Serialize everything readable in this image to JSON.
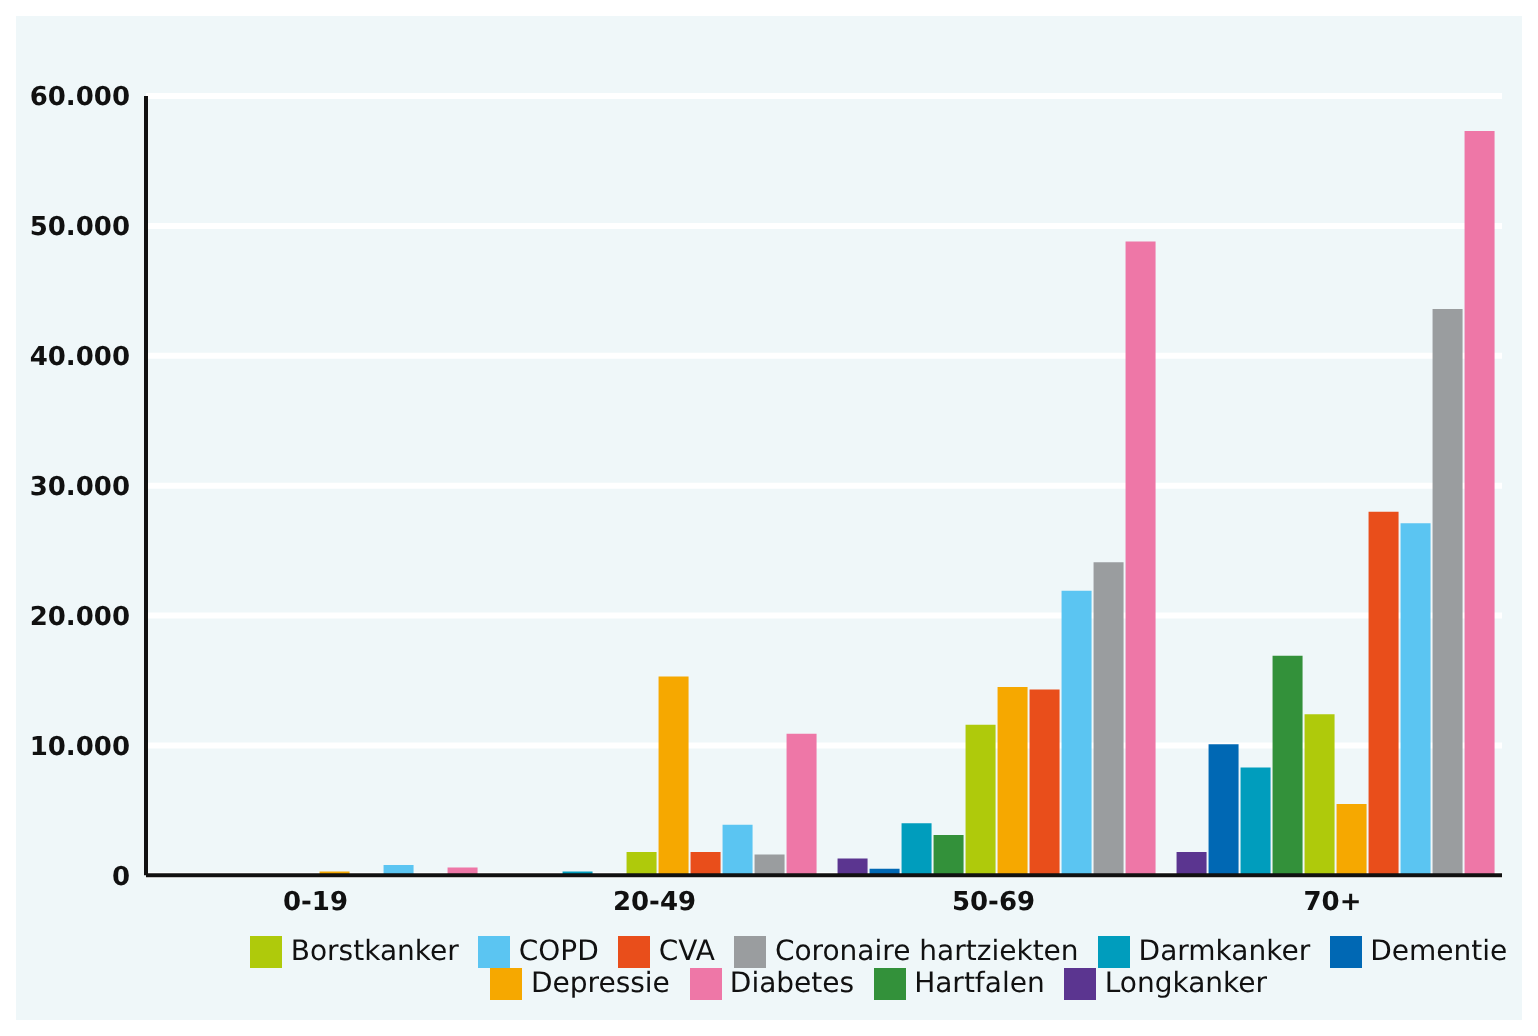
{
  "chart_data": {
    "type": "bar",
    "categories": [
      "0-19",
      "20-49",
      "50-69",
      "70+"
    ],
    "series": [
      {
        "name": "Longkanker",
        "color": "#5b3590",
        "values": [
          100,
          0,
          1300,
          1800
        ]
      },
      {
        "name": "Dementie",
        "color": "#0068b4",
        "values": [
          100,
          0,
          500,
          10100
        ]
      },
      {
        "name": "Darmkanker",
        "color": "#009dbd",
        "values": [
          0,
          300,
          4000,
          8300
        ]
      },
      {
        "name": "Hartfalen",
        "color": "#33913a",
        "values": [
          0,
          100,
          3100,
          16900
        ]
      },
      {
        "name": "Borstkanker",
        "color": "#afca0b",
        "values": [
          0,
          1800,
          11600,
          12400
        ]
      },
      {
        "name": "Depressie",
        "color": "#f6a800",
        "values": [
          300,
          15300,
          14500,
          5500
        ]
      },
      {
        "name": "CVA",
        "color": "#e94e1b",
        "values": [
          0,
          1800,
          14300,
          28000
        ]
      },
      {
        "name": "COPD",
        "color": "#5bc5f2",
        "values": [
          800,
          3900,
          21900,
          27100
        ]
      },
      {
        "name": "Coronaire hartziekten",
        "color": "#9a9d9f",
        "values": [
          0,
          1600,
          24100,
          43600
        ]
      },
      {
        "name": "Diabetes",
        "color": "#ee77a7",
        "values": [
          600,
          10900,
          48800,
          57300
        ]
      }
    ],
    "ylim": [
      0,
      60000
    ],
    "yticks": [
      0,
      {
        "value": 10000,
        "label": "10.000"
      },
      {
        "value": 20000,
        "label": "20.000"
      },
      {
        "value": 30000,
        "label": "30.000"
      },
      {
        "value": 40000,
        "label": "40.000"
      },
      {
        "value": 50000,
        "label": "50.000"
      },
      {
        "value": 60000,
        "label": "60.000"
      }
    ],
    "grid": "y",
    "legend": "bottom"
  }
}
